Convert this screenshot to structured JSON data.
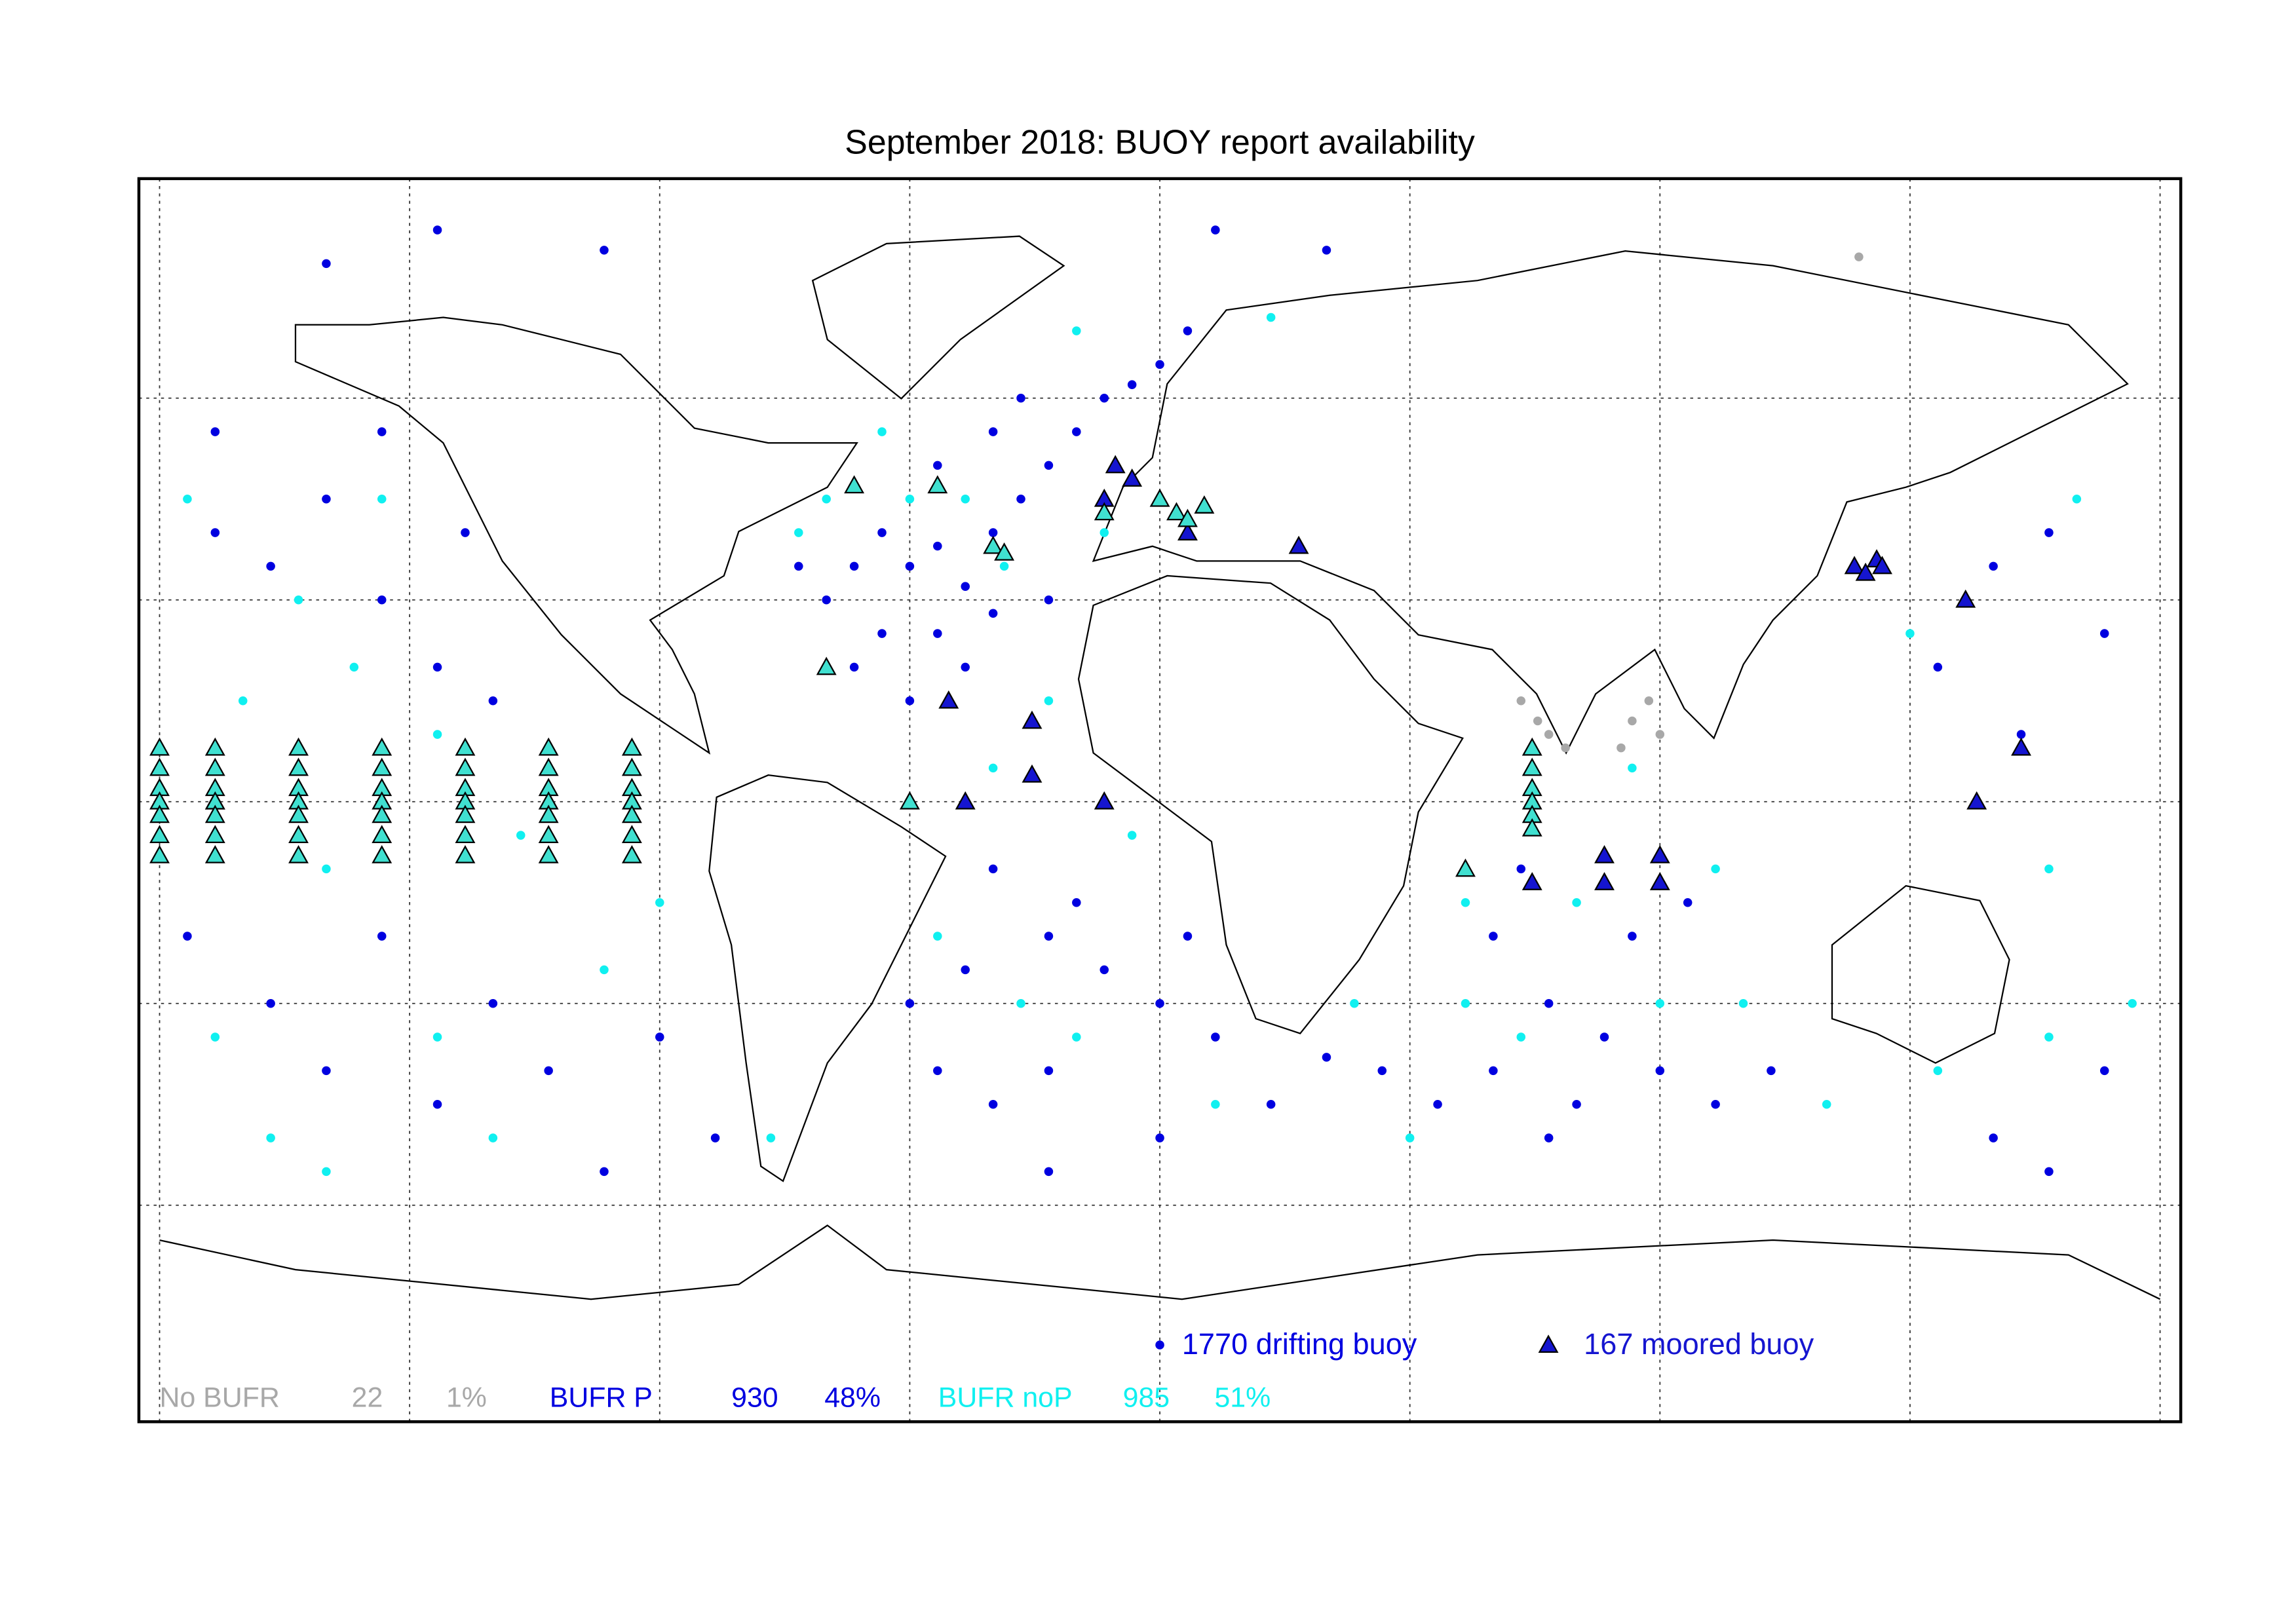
{
  "chart_data": {
    "type": "scatter",
    "title": "September 2018: BUOY report availability",
    "xlim": [
      -180,
      180
    ],
    "ylim": [
      -90,
      90
    ],
    "xticks": [
      -180,
      -135,
      -90,
      -45,
      0,
      45,
      90,
      135,
      180
    ],
    "yticks": [
      -60,
      -30,
      0,
      30,
      60
    ],
    "grid": true,
    "series": [
      {
        "color": "#0000e0",
        "marker": "circle",
        "x": [
          -50,
          -45,
          -40,
          -35,
          -30,
          -25,
          -20,
          -15,
          -10,
          -30,
          -40,
          -55,
          -60,
          -50,
          -40,
          -30,
          -20,
          -65,
          -5,
          0,
          -25,
          5,
          -35,
          -45,
          -55,
          -30,
          -20,
          -10,
          0,
          10,
          -40,
          -30,
          -20,
          -15,
          5,
          -45,
          -35,
          60,
          70,
          80,
          90,
          100,
          60,
          50,
          75,
          110,
          85,
          95,
          65,
          70,
          40,
          30,
          -100,
          -80,
          -130,
          150,
          160,
          20,
          0,
          -20,
          -170,
          -160,
          -150,
          -140,
          -130,
          -120,
          160,
          150,
          170,
          -175,
          -160,
          -150,
          -140,
          -120,
          -110,
          -90,
          140,
          155,
          -170,
          -140,
          170,
          -125,
          -150,
          -130,
          10,
          30,
          -100
        ],
        "y": [
          40,
          35,
          38,
          32,
          40,
          45,
          50,
          55,
          60,
          55,
          50,
          35,
          30,
          25,
          25,
          28,
          30,
          35,
          62,
          65,
          60,
          70,
          20,
          15,
          20,
          -10,
          -20,
          -25,
          -30,
          -35,
          -40,
          -45,
          -40,
          -15,
          -20,
          -30,
          -25,
          -20,
          -30,
          -35,
          -40,
          -45,
          -40,
          -45,
          -45,
          -40,
          -20,
          -15,
          -10,
          -50,
          -40,
          -38,
          -55,
          -50,
          -45,
          -50,
          -55,
          -45,
          -50,
          -55,
          40,
          35,
          45,
          30,
          20,
          15,
          40,
          35,
          25,
          -20,
          -30,
          -40,
          -20,
          -30,
          -40,
          -35,
          20,
          10,
          55,
          55,
          -40,
          40,
          80,
          85,
          85,
          82,
          82
        ]
      },
      {
        "color": "#10f0f0",
        "marker": "circle",
        "x": [
          -155,
          -145,
          -165,
          -130,
          -115,
          -150,
          -170,
          -130,
          -100,
          -140,
          -175,
          165,
          145,
          135,
          160,
          175,
          -45,
          -35,
          -28,
          -50,
          -10,
          -20,
          -30,
          -5,
          -25,
          -15,
          10,
          -40,
          55,
          75,
          65,
          90,
          105,
          55,
          45,
          120,
          -70,
          -150,
          -90,
          85,
          -60,
          -65,
          20,
          -15,
          35,
          160,
          -120,
          -160,
          140,
          100
        ],
        "y": [
          30,
          20,
          15,
          10,
          -5,
          -10,
          -35,
          -35,
          -25,
          45,
          45,
          45,
          30,
          25,
          -10,
          -30,
          45,
          45,
          35,
          55,
          40,
          15,
          5,
          -5,
          -30,
          -35,
          -45,
          -20,
          -15,
          -15,
          -35,
          -30,
          -30,
          -30,
          -50,
          -45,
          -50,
          -55,
          -15,
          5,
          45,
          40,
          72,
          70,
          -30,
          -35,
          -50,
          -50,
          -40,
          -10
        ]
      },
      {
        "color": "#a8a8a8",
        "marker": "circle",
        "x": [
          65,
          68,
          70,
          73,
          85,
          88,
          90,
          83,
          125.8
        ],
        "y": [
          15,
          12,
          10,
          8,
          12,
          15,
          10,
          8,
          81
        ]
      },
      {
        "color": "#1515d0",
        "marker": "triangle",
        "x": [
          -170,
          -38,
          -23,
          -23,
          -10,
          -35,
          80,
          80,
          90,
          90,
          67,
          125,
          127,
          129,
          130,
          145,
          147,
          -10,
          -5,
          5,
          -8,
          25,
          155
        ],
        "y": [
          0,
          15,
          12,
          4,
          0,
          0,
          -12,
          -8,
          -8,
          -12,
          -12,
          35,
          34,
          36,
          35,
          30,
          0,
          45,
          48,
          40,
          50,
          38,
          8
        ]
      },
      {
        "color": "#40e0d0",
        "marker": "triangle",
        "x": [
          -180,
          -180,
          -180,
          -180,
          -180,
          -180,
          -180,
          -170,
          -170,
          -170,
          -170,
          -170,
          -170,
          -170,
          -155,
          -155,
          -155,
          -155,
          -155,
          -155,
          -155,
          -140,
          -140,
          -140,
          -140,
          -140,
          -140,
          -140,
          -125,
          -125,
          -125,
          -125,
          -125,
          -125,
          -125,
          -110,
          -110,
          -110,
          -110,
          -110,
          -110,
          -110,
          -95,
          -95,
          -95,
          -95,
          -95,
          -95,
          -95,
          0,
          3,
          5,
          -10,
          8,
          -30,
          -28,
          -40,
          -55,
          -60,
          -45,
          55,
          67,
          67,
          67,
          67,
          67,
          67
        ],
        "y": [
          8,
          5,
          2,
          0,
          -2,
          -5,
          -8,
          8,
          5,
          2,
          0,
          -2,
          -5,
          -8,
          8,
          5,
          2,
          0,
          -2,
          -5,
          -8,
          8,
          5,
          2,
          0,
          -2,
          -5,
          -8,
          8,
          5,
          2,
          0,
          -2,
          -5,
          -8,
          8,
          5,
          2,
          0,
          -2,
          -5,
          -8,
          8,
          5,
          2,
          0,
          -2,
          -5,
          -8,
          45,
          43,
          42,
          43,
          44,
          38,
          37,
          47,
          47,
          20,
          0,
          -10,
          8,
          5,
          2,
          0,
          -2,
          -4
        ]
      }
    ],
    "legend": [
      {
        "label": "1770 drifting buoy",
        "marker": "circle",
        "color": "#0000e0"
      },
      {
        "label": "167 moored buoy",
        "marker": "triangle",
        "color": "#1515d0"
      }
    ],
    "summary": [
      {
        "label": "No BUFR",
        "count": 22,
        "percent": {
          "value": 1,
          "label": "1%"
        },
        "color": "#a8a8a8"
      },
      {
        "label": "BUFR P",
        "count": 930,
        "percent": {
          "value": 48,
          "label": "48%"
        },
        "color": "#0000e0"
      },
      {
        "label": "BUFR noP",
        "count": 985,
        "percent": {
          "value": 51,
          "label": "51%"
        },
        "color": "#10f0f0"
      }
    ]
  }
}
